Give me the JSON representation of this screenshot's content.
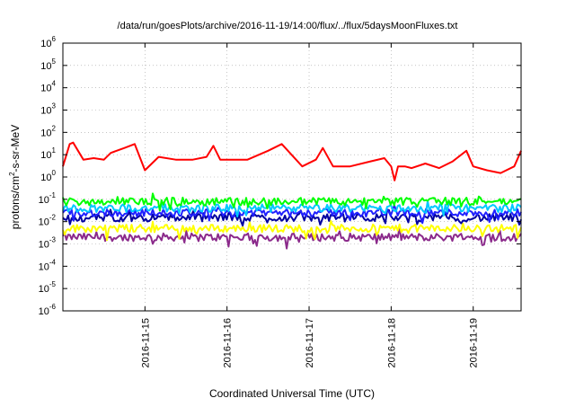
{
  "chart_data": {
    "type": "line",
    "title": "/data/run/goesPlots/archive/2016-11-19/14:00/flux/../flux/5daysMoonFluxes.txt",
    "xlabel": "Coordinated Universal Time (UTC)",
    "ylabel": {
      "base": "protons/cm",
      "sup": "2",
      "rest": "-s-sr-MeV"
    },
    "x_range": [
      "2016-11-14T00:00",
      "2016-11-19T14:00"
    ],
    "x_tick_labels": [
      "2016-11-15",
      "2016-11-16",
      "2016-11-17",
      "2016-11-18",
      "2016-11-19"
    ],
    "y_scale": "log",
    "y_range": [
      1e-06,
      1000000.0
    ],
    "y_tick_labels": [
      "-6",
      "-5",
      "-4",
      "-3",
      "-2",
      "-1",
      "0",
      "1",
      "2",
      "3",
      "4",
      "5",
      "6"
    ],
    "y_tick_base": "10",
    "grid": true,
    "legend": "none",
    "series": [
      {
        "color": "#ff0000",
        "x": [
          "2016-11-14T00:00",
          "2016-11-14T02:00",
          "2016-11-14T03:00",
          "2016-11-14T06:00",
          "2016-11-14T09:00",
          "2016-11-14T12:00",
          "2016-11-14T14:00",
          "2016-11-14T18:00",
          "2016-11-14T21:00",
          "2016-11-15T00:00",
          "2016-11-15T04:00",
          "2016-11-15T09:00",
          "2016-11-15T14:00",
          "2016-11-15T18:00",
          "2016-11-15T20:00",
          "2016-11-15T22:00",
          "2016-11-16T02:00",
          "2016-11-16T06:00",
          "2016-11-16T12:00",
          "2016-11-16T16:00",
          "2016-11-16T22:00",
          "2016-11-17T02:00",
          "2016-11-17T04:00",
          "2016-11-17T07:00",
          "2016-11-17T12:00",
          "2016-11-17T18:00",
          "2016-11-17T22:00",
          "2016-11-18T00:00",
          "2016-11-18T01:00",
          "2016-11-18T02:00",
          "2016-11-18T04:00",
          "2016-11-18T06:00",
          "2016-11-18T10:00",
          "2016-11-18T14:00",
          "2016-11-18T18:00",
          "2016-11-18T22:00",
          "2016-11-19T00:00",
          "2016-11-19T04:00",
          "2016-11-19T08:00",
          "2016-11-19T12:00",
          "2016-11-19T14:00"
        ],
        "y": [
          3,
          30,
          35,
          6,
          7,
          6,
          12,
          20,
          30,
          2,
          8,
          6,
          6,
          8,
          25,
          6,
          6,
          6,
          15,
          30,
          3,
          6,
          20,
          3,
          3,
          5,
          7,
          3,
          0.7,
          3,
          3,
          2.5,
          4,
          2.5,
          5,
          15,
          3,
          2,
          1.5,
          3,
          15
        ]
      },
      {
        "color": "#00ff00",
        "y_level": 0.08
      },
      {
        "color": "#00c8ff",
        "y_level": 0.04
      },
      {
        "color": "#2020ff",
        "y_level": 0.025
      },
      {
        "color": "#0000a0",
        "y_level": 0.015
      },
      {
        "color": "#ffff00",
        "y_level": 0.005
      },
      {
        "color": "#8b2a8b",
        "y_level": 0.002
      }
    ]
  }
}
